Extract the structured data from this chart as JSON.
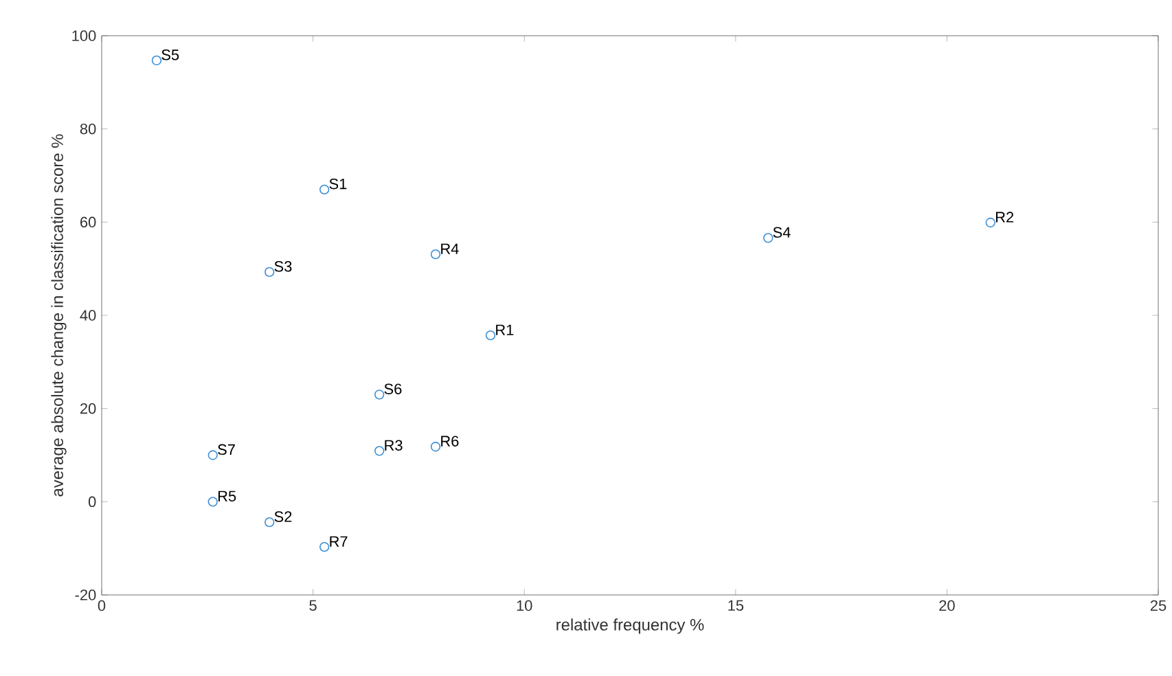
{
  "chart_data": {
    "type": "scatter",
    "xlabel": "relative frequency %",
    "ylabel": "average absolute change in classification score %",
    "x": [
      1.3,
      5.27,
      3.97,
      7.9,
      15.77,
      21.03,
      9.2,
      6.57,
      2.63,
      6.57,
      7.9,
      2.63,
      3.97,
      5.27
    ],
    "series": [
      {
        "color": "#3d8fd6",
        "values": [
          94.7,
          67.0,
          49.3,
          53.1,
          56.6,
          59.9,
          35.7,
          23.0,
          10.0,
          10.9,
          11.8,
          0,
          -4.4,
          -9.7
        ]
      }
    ],
    "annotations": [
      {
        "text": "S5",
        "x": 1.3,
        "y": 94.7
      },
      {
        "text": "S1",
        "x": 5.27,
        "y": 67.0
      },
      {
        "text": "S3",
        "x": 3.97,
        "y": 49.3
      },
      {
        "text": "R4",
        "x": 7.9,
        "y": 53.1
      },
      {
        "text": "S4",
        "x": 15.77,
        "y": 56.6
      },
      {
        "text": "R2",
        "x": 21.03,
        "y": 59.9
      },
      {
        "text": "R1",
        "x": 9.2,
        "y": 35.7
      },
      {
        "text": "S6",
        "x": 6.57,
        "y": 23.0
      },
      {
        "text": "S7",
        "x": 2.63,
        "y": 10.0
      },
      {
        "text": "R3",
        "x": 6.57,
        "y": 10.9
      },
      {
        "text": "R6",
        "x": 7.9,
        "y": 11.8
      },
      {
        "text": "R5",
        "x": 2.63,
        "y": 0
      },
      {
        "text": "S2",
        "x": 3.97,
        "y": -4.4
      },
      {
        "text": "R7",
        "x": 5.27,
        "y": -9.7
      }
    ],
    "xlim": [
      0,
      25
    ],
    "xticks": [
      0,
      5,
      10,
      15,
      20,
      25
    ],
    "ylim": [
      -20,
      100
    ],
    "yticks": [
      -20,
      0,
      20,
      40,
      60,
      80,
      100
    ],
    "marker": "circle"
  }
}
